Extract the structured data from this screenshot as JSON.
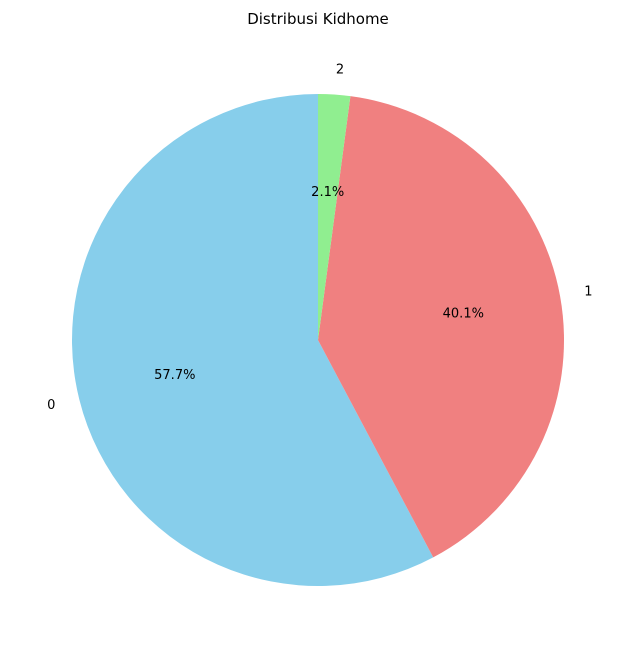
{
  "chart_data": {
    "type": "pie",
    "title": "Distribusi Kidhome",
    "categories": [
      "0",
      "1",
      "2"
    ],
    "values": [
      57.7,
      40.1,
      2.1
    ],
    "percent_labels": [
      "57.7%",
      "40.1%",
      "2.1%"
    ],
    "colors": [
      "#87CEEB",
      "#F08080",
      "#90EE90"
    ],
    "start_angle_deg": 90,
    "direction": "counterclockwise",
    "legend": "none"
  }
}
